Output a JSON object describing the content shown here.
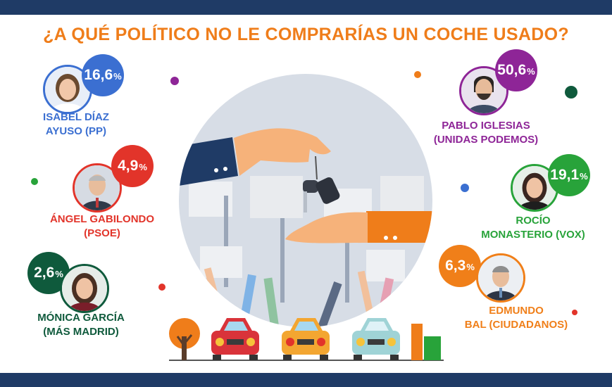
{
  "title": "¿A QUÉ POLÍTICO NO LE COMPRARÍAS UN COCHE USADO?",
  "percent_symbol": "%",
  "colors": {
    "frame": "#1f3b66",
    "title": "#ef7d1a",
    "pp": "#3b6fd1",
    "psoe": "#e2342a",
    "mas_madrid": "#0f5a3c",
    "podemos": "#8e2597",
    "vox": "#28a33a",
    "ciudadanos": "#f07f19"
  },
  "chart_data": {
    "type": "table",
    "title": "¿A QUÉ POLÍTICO NO LE COMPRARÍAS UN COCHE USADO?",
    "unit": "%",
    "categories": [
      "ISABEL DÍAZ AYUSO (PP)",
      "ÁNGEL GABILONDO (PSOE)",
      "MÓNICA GARCÍA (MÁS MADRID)",
      "PABLO IGLESIAS (UNIDAS PODEMOS)",
      "ROCÍO MONASTERIO (VOX)",
      "EDMUNDO BAL (CIUDADANOS)"
    ],
    "values": [
      16.6,
      4.9,
      2.6,
      50.6,
      19.1,
      6.3
    ],
    "items": [
      {
        "id": "ayuso",
        "label_lines": [
          "ISABEL DÍAZ",
          "AYUSO (PP)"
        ],
        "value_text": "16,6",
        "value": 16.6,
        "color": "#3b6fd1"
      },
      {
        "id": "gabilondo",
        "label_lines": [
          "ÁNGEL GABILONDO",
          "(PSOE)"
        ],
        "value_text": "4,9",
        "value": 4.9,
        "color": "#e2342a"
      },
      {
        "id": "garcia",
        "label_lines": [
          "MÓNICA GARCÍA",
          "(MÁS MADRID)"
        ],
        "value_text": "2,6",
        "value": 2.6,
        "color": "#0f5a3c"
      },
      {
        "id": "iglesias",
        "label_lines": [
          "PABLO IGLESIAS",
          "(UNIDAS PODEMOS)"
        ],
        "value_text": "50,6",
        "value": 50.6,
        "color": "#8e2597"
      },
      {
        "id": "monasterio",
        "label_lines": [
          "ROCÍO",
          "MONASTERIO (VOX)"
        ],
        "value_text": "19,1",
        "value": 19.1,
        "color": "#28a33a"
      },
      {
        "id": "bal",
        "label_lines": [
          "EDMUNDO",
          "BAL (CIUDADANOS)"
        ],
        "value_text": "6,3",
        "value": 6.3,
        "color": "#f07f19"
      }
    ]
  }
}
